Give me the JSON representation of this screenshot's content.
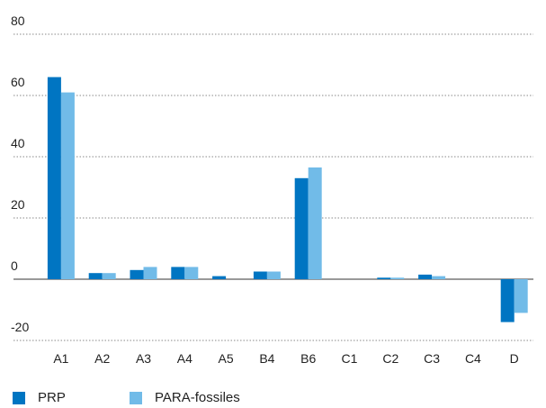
{
  "chart_data": {
    "type": "bar",
    "title": "",
    "xlabel": "",
    "ylabel": "",
    "categories": [
      "A1",
      "A2",
      "A3",
      "A4",
      "A5",
      "B4",
      "B6",
      "C1",
      "C2",
      "C3",
      "C4",
      "D"
    ],
    "series": [
      {
        "name": "PRP",
        "color": "#0075c2",
        "values": [
          66,
          2,
          3,
          4,
          1,
          2.5,
          33,
          0,
          0.5,
          1.5,
          0,
          -14
        ]
      },
      {
        "name": "PARA-fossiles",
        "color": "#71bbe8",
        "values": [
          61,
          2,
          4,
          4,
          0,
          2.5,
          36.5,
          0,
          0.5,
          1,
          0,
          -11
        ]
      }
    ],
    "ylim": [
      -20,
      80
    ],
    "yticks": [
      80,
      60,
      40,
      20,
      0,
      -20
    ],
    "grid": true,
    "grid_style": "dotted",
    "legend_position": "bottom-left"
  }
}
